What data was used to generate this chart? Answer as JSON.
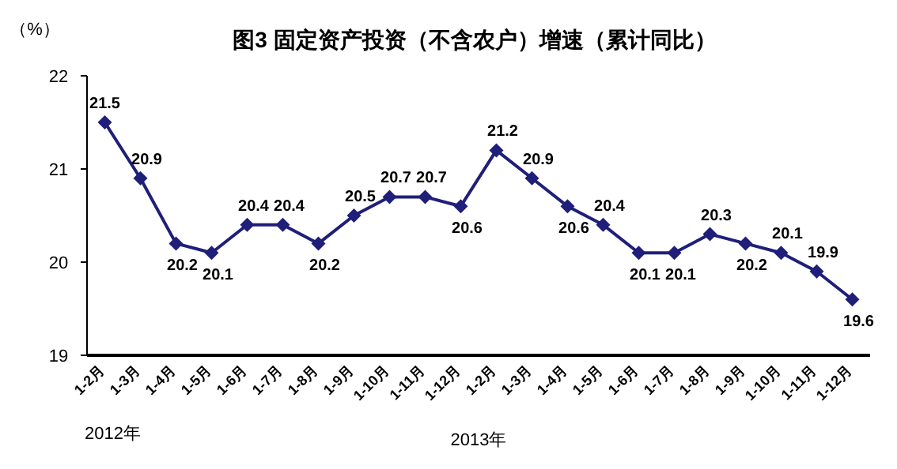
{
  "chart_data": {
    "type": "line",
    "title": "图3  固定资产投资（不含农户）增速（累计同比）",
    "ylabel": "（%）",
    "categories": [
      "1-2月",
      "1-3月",
      "1-4月",
      "1-5月",
      "1-6月",
      "1-7月",
      "1-8月",
      "1-9月",
      "1-10月",
      "1-11月",
      "1-12月",
      "1-2月",
      "1-3月",
      "1-4月",
      "1-5月",
      "1-6月",
      "1-7月",
      "1-8月",
      "1-9月",
      "1-10月",
      "1-11月",
      "1-12月"
    ],
    "series": [
      {
        "color": "#1f1f7a",
        "values": [
          21.5,
          20.9,
          20.2,
          20.1,
          20.4,
          20.4,
          20.2,
          20.5,
          20.7,
          20.7,
          20.6,
          21.2,
          20.9,
          20.6,
          20.4,
          20.1,
          20.1,
          20.3,
          20.2,
          20.1,
          19.9,
          19.6
        ]
      }
    ],
    "ylim": [
      19,
      22
    ],
    "yticks": [
      19,
      20,
      21,
      22
    ],
    "grid": false,
    "marker": "diamond",
    "line_style": "solid",
    "data_labels": true,
    "annotations": [
      "2012年",
      "2013年"
    ]
  }
}
